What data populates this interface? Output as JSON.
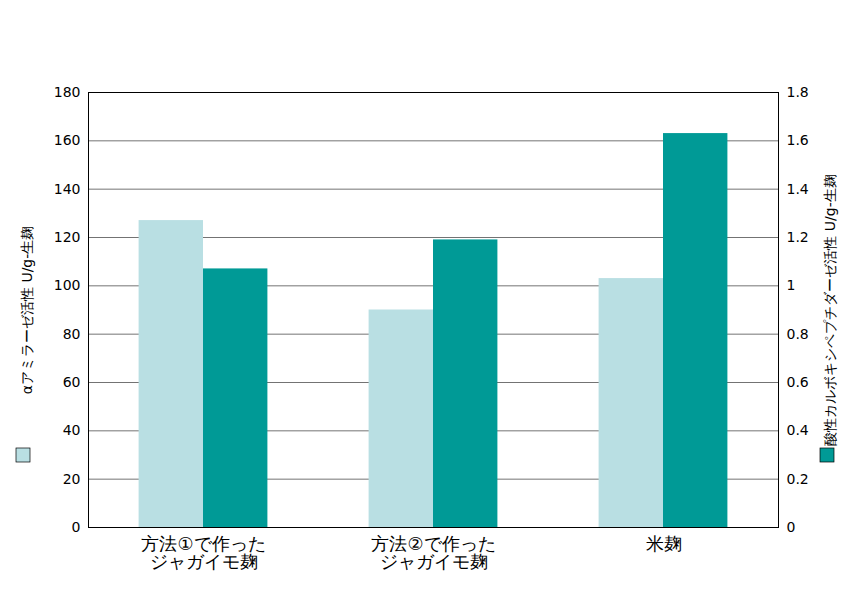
{
  "chart_data": {
    "type": "bar",
    "categories": [
      "方法①で作ったジャガイモ麹",
      "方法②で作ったジャガイモ麹",
      "米麹"
    ],
    "series": [
      {
        "name": "αアミラーゼ活性 U/g-生麹",
        "color": "#b9dfe3",
        "values": [
          127,
          90,
          103
        ]
      },
      {
        "name": "酸性カルボキシペプチダーゼ活性 U/g-生麹",
        "color": "#009a96",
        "values": [
          1.07,
          1.19,
          1.63
        ],
        "axis": "y2"
      }
    ],
    "ylim": [
      0,
      180
    ],
    "yticks": [
      0,
      20,
      40,
      60,
      80,
      100,
      120,
      140,
      160,
      180
    ],
    "y2lim": [
      0,
      1.8
    ],
    "y2ticks": [
      0,
      0.2,
      0.4,
      0.6,
      0.8,
      1,
      1.2,
      1.4,
      1.6,
      1.8
    ],
    "grid": true
  }
}
